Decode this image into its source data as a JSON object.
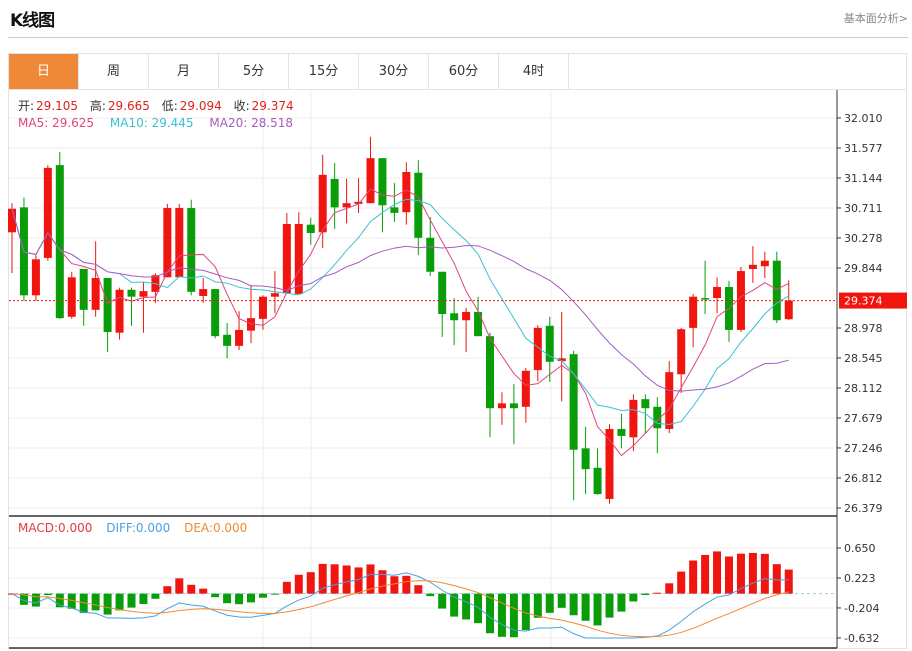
{
  "header": {
    "title": "K线图",
    "link": "基本面分析>"
  },
  "tabs": [
    {
      "label": "日",
      "active": true
    },
    {
      "label": "周"
    },
    {
      "label": "月"
    },
    {
      "label": "5分"
    },
    {
      "label": "15分"
    },
    {
      "label": "30分"
    },
    {
      "label": "60分"
    },
    {
      "label": "4时"
    }
  ],
  "ohlc_legend": {
    "open_label": "开:",
    "open": "29.105",
    "high_label": "高:",
    "high": "29.665",
    "low_label": "低:",
    "low": "29.094",
    "close_label": "收:",
    "close": "29.374"
  },
  "ma_legend": {
    "ma5": "MA5: 29.625",
    "ma10": "MA10: 29.445",
    "ma20": "MA20: 28.518"
  },
  "macd_legend": {
    "macd": "MACD:0.000",
    "diff": "DIFF:0.000",
    "dea": "DEA:0.000"
  },
  "colors": {
    "up": "#f0150e",
    "down": "#0a9d0a",
    "ma5": "#e0457b",
    "ma10": "#3cc0d0",
    "ma20": "#a65cc0",
    "diff": "#4aa0e0",
    "dea": "#f08a30",
    "accent": "#f0883a"
  },
  "chart_data": {
    "type": "candlestick",
    "price_ticks": [
      "32.010",
      "31.577",
      "31.144",
      "30.711",
      "30.278",
      "29.844",
      "28.978",
      "28.545",
      "28.112",
      "27.679",
      "27.246",
      "26.812",
      "26.379"
    ],
    "ylim": [
      26.379,
      32.01
    ],
    "current_price": "29.374",
    "macd_ticks": [
      "0.650",
      "0.223",
      "-0.204",
      "-0.632"
    ],
    "macd_ylim": [
      -0.632,
      0.65
    ],
    "candles": [
      [
        30.36,
        30.7,
        30.78,
        29.77
      ],
      [
        30.72,
        29.45,
        30.86,
        29.37
      ],
      [
        29.45,
        29.97,
        30.03,
        29.37
      ],
      [
        29.99,
        31.29,
        31.33,
        29.95
      ],
      [
        31.33,
        29.12,
        31.52,
        29.11
      ],
      [
        29.14,
        29.71,
        29.79,
        29.11
      ],
      [
        29.83,
        29.24,
        29.83,
        29.01
      ],
      [
        29.24,
        29.7,
        30.23,
        29.14
      ],
      [
        29.7,
        28.92,
        29.7,
        28.63
      ],
      [
        28.91,
        29.53,
        29.56,
        28.81
      ],
      [
        29.53,
        29.43,
        29.56,
        29.01
      ],
      [
        29.43,
        29.51,
        29.64,
        28.91
      ],
      [
        29.5,
        29.74,
        29.77,
        29.34
      ],
      [
        29.71,
        30.71,
        30.77,
        29.71
      ],
      [
        29.71,
        30.71,
        30.77,
        29.71
      ],
      [
        30.71,
        29.5,
        30.83,
        29.45
      ],
      [
        29.44,
        29.54,
        29.7,
        29.34
      ],
      [
        29.54,
        28.86,
        29.54,
        28.83
      ],
      [
        28.88,
        28.72,
        29.05,
        28.54
      ],
      [
        28.72,
        28.95,
        29.22,
        28.66
      ],
      [
        28.94,
        29.12,
        29.6,
        28.76
      ],
      [
        29.11,
        29.43,
        29.45,
        28.95
      ],
      [
        29.43,
        29.48,
        29.8,
        29.19
      ],
      [
        29.48,
        30.48,
        30.64,
        29.48
      ],
      [
        29.47,
        30.48,
        30.65,
        29.47
      ],
      [
        30.47,
        30.35,
        30.57,
        30.18
      ],
      [
        30.36,
        31.19,
        31.48,
        30.13
      ],
      [
        31.13,
        30.72,
        31.36,
        30.41
      ],
      [
        30.72,
        30.78,
        31.13,
        30.49
      ],
      [
        30.77,
        30.8,
        31.14,
        30.64
      ],
      [
        30.78,
        31.43,
        31.74,
        30.78
      ],
      [
        31.43,
        30.75,
        31.43,
        30.36
      ],
      [
        30.72,
        30.64,
        31.07,
        30.51
      ],
      [
        30.65,
        31.23,
        31.37,
        30.47
      ],
      [
        31.22,
        30.28,
        31.4,
        30.03
      ],
      [
        30.28,
        29.79,
        30.58,
        29.73
      ],
      [
        29.79,
        29.18,
        29.79,
        28.85
      ],
      [
        29.19,
        29.09,
        29.41,
        28.73
      ],
      [
        29.09,
        29.21,
        29.27,
        28.63
      ],
      [
        29.21,
        28.86,
        29.43,
        28.86
      ],
      [
        28.86,
        27.82,
        28.91,
        27.4
      ],
      [
        27.82,
        27.89,
        28.05,
        27.58
      ],
      [
        27.89,
        27.82,
        28.17,
        27.3
      ],
      [
        27.84,
        28.36,
        28.4,
        27.61
      ],
      [
        28.37,
        28.98,
        29.02,
        28.21
      ],
      [
        29.01,
        28.49,
        29.14,
        28.2
      ],
      [
        28.5,
        28.54,
        29.21,
        27.92
      ],
      [
        28.6,
        27.22,
        28.65,
        26.49
      ],
      [
        27.24,
        26.94,
        27.55,
        26.58
      ],
      [
        26.96,
        26.58,
        27.24,
        26.57
      ],
      [
        26.51,
        27.52,
        27.59,
        26.44
      ],
      [
        27.52,
        27.42,
        27.74,
        27.24
      ],
      [
        27.4,
        27.94,
        28.02,
        27.2
      ],
      [
        27.95,
        27.82,
        28.02,
        27.45
      ],
      [
        27.84,
        27.53,
        27.98,
        27.17
      ],
      [
        27.52,
        28.34,
        28.5,
        27.46
      ],
      [
        28.31,
        28.96,
        28.98,
        28.04
      ],
      [
        28.98,
        29.43,
        29.47,
        28.7
      ],
      [
        29.41,
        29.4,
        29.95,
        29.18
      ],
      [
        29.41,
        29.57,
        29.71,
        29.19
      ],
      [
        29.57,
        28.95,
        29.66,
        28.78
      ],
      [
        28.95,
        29.8,
        29.86,
        28.92
      ],
      [
        29.83,
        29.89,
        30.16,
        29.63
      ],
      [
        29.87,
        29.95,
        30.08,
        29.7
      ],
      [
        29.95,
        29.09,
        30.08,
        29.05
      ],
      [
        29.105,
        29.374,
        29.665,
        29.094
      ]
    ],
    "candle_format": [
      "open",
      "close",
      "high",
      "low"
    ]
  }
}
